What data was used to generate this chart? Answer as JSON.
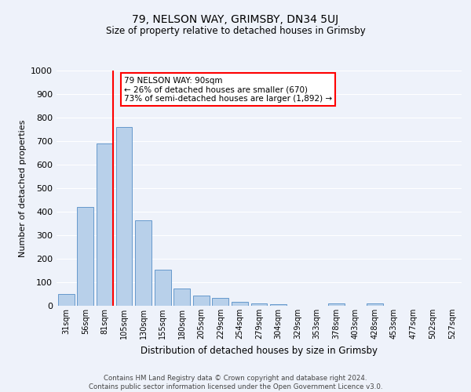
{
  "title": "79, NELSON WAY, GRIMSBY, DN34 5UJ",
  "subtitle": "Size of property relative to detached houses in Grimsby",
  "xlabel": "Distribution of detached houses by size in Grimsby",
  "ylabel": "Number of detached properties",
  "bar_labels": [
    "31sqm",
    "56sqm",
    "81sqm",
    "105sqm",
    "130sqm",
    "155sqm",
    "180sqm",
    "205sqm",
    "229sqm",
    "254sqm",
    "279sqm",
    "304sqm",
    "329sqm",
    "353sqm",
    "378sqm",
    "403sqm",
    "428sqm",
    "453sqm",
    "477sqm",
    "502sqm",
    "527sqm"
  ],
  "bar_heights": [
    50,
    420,
    690,
    760,
    365,
    155,
    75,
    42,
    32,
    18,
    11,
    8,
    0,
    0,
    10,
    0,
    10,
    0,
    0,
    0,
    0
  ],
  "bar_color": "#b8d0ea",
  "bar_edge_color": "#6699cc",
  "ylim": [
    0,
    1000
  ],
  "yticks": [
    0,
    100,
    200,
    300,
    400,
    500,
    600,
    700,
    800,
    900,
    1000
  ],
  "vline_color": "red",
  "annotation_text": "79 NELSON WAY: 90sqm\n← 26% of detached houses are smaller (670)\n73% of semi-detached houses are larger (1,892) →",
  "annotation_box_color": "white",
  "annotation_box_edge_color": "red",
  "footer_line1": "Contains HM Land Registry data © Crown copyright and database right 2024.",
  "footer_line2": "Contains public sector information licensed under the Open Government Licence v3.0.",
  "bg_color": "#eef2fa",
  "grid_color": "white",
  "figsize": [
    6.0,
    5.0
  ],
  "dpi": 100
}
